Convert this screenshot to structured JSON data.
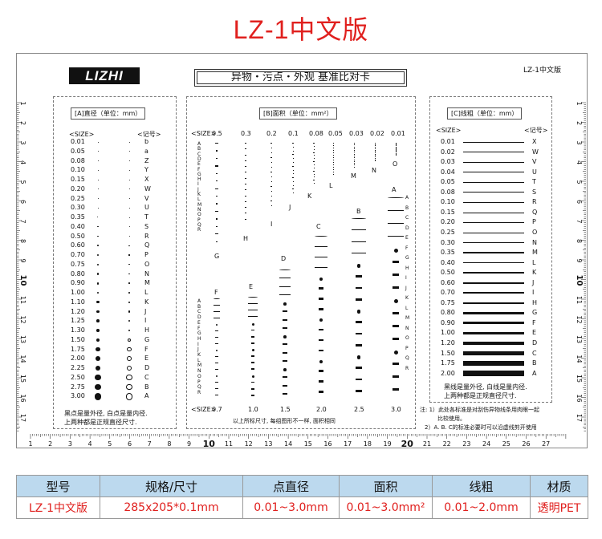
{
  "page_title": "LZ-1中文版",
  "card": {
    "logo": "LIZHI",
    "title": "异物・污点・外观 基准比对卡",
    "version": "LZ-1中文版"
  },
  "panel_a": {
    "header": "[A]直径（单位：mm）",
    "col_size": "<SIZE>",
    "col_code": "<记号>",
    "rows": [
      {
        "size": "0.01",
        "code": "b"
      },
      {
        "size": "0.05",
        "code": "a"
      },
      {
        "size": "0.08",
        "code": "Z"
      },
      {
        "size": "0.10",
        "code": "Y"
      },
      {
        "size": "0.15",
        "code": "X"
      },
      {
        "size": "0.20",
        "code": "W"
      },
      {
        "size": "0.25",
        "code": "V"
      },
      {
        "size": "0.30",
        "code": "U"
      },
      {
        "size": "0.35",
        "code": "T"
      },
      {
        "size": "0.40",
        "code": "S"
      },
      {
        "size": "0.50",
        "code": "R"
      },
      {
        "size": "0.60",
        "code": "Q"
      },
      {
        "size": "0.70",
        "code": "P"
      },
      {
        "size": "0.75",
        "code": "O"
      },
      {
        "size": "0.80",
        "code": "N"
      },
      {
        "size": "0.90",
        "code": "M"
      },
      {
        "size": "1.00",
        "code": "L"
      },
      {
        "size": "1.10",
        "code": "K"
      },
      {
        "size": "1.20",
        "code": "J"
      },
      {
        "size": "1.25",
        "code": "I"
      },
      {
        "size": "1.30",
        "code": "H"
      },
      {
        "size": "1.50",
        "code": "G"
      },
      {
        "size": "1.75",
        "code": "F"
      },
      {
        "size": "2.00",
        "code": "E"
      },
      {
        "size": "2.25",
        "code": "D"
      },
      {
        "size": "2.50",
        "code": "C"
      },
      {
        "size": "2.75",
        "code": "B"
      },
      {
        "size": "3.00",
        "code": "A"
      }
    ],
    "note_1": "黑点是量外径, 白点是量内径.",
    "note_2": "上两种都是正规直径尺寸."
  },
  "panel_b": {
    "header": "[B]面积（单位：mm²）",
    "top_size_label": "<SIZE>",
    "top_sizes": [
      "0.5",
      "0.3",
      "0.2",
      "0.1",
      "0.08",
      "0.05",
      "0.03",
      "0.02",
      "0.01"
    ],
    "bottom_size_label": "<SIZE>",
    "bottom_sizes": [
      "0.7",
      "1.0",
      "1.5",
      "2.0",
      "2.5",
      "3.0"
    ],
    "group_letters": [
      "A",
      "B",
      "C",
      "D",
      "E",
      "F",
      "G",
      "H",
      "I",
      "J",
      "K",
      "L",
      "M",
      "N",
      "O"
    ],
    "side_letters": [
      "A",
      "B",
      "C",
      "D",
      "E",
      "F",
      "G",
      "H",
      "I",
      "J",
      "K",
      "L",
      "M",
      "N",
      "O",
      "P",
      "Q",
      "R"
    ],
    "note": "以上所标尺寸, 每组图形不一样, 面积相同"
  },
  "panel_c": {
    "header": "[C]线粗（单位：mm）",
    "col_size": "<SIZE>",
    "col_code": "<记号>",
    "rows": [
      {
        "size": "0.01",
        "code": "X"
      },
      {
        "size": "0.02",
        "code": "W"
      },
      {
        "size": "0.03",
        "code": "V"
      },
      {
        "size": "0.04",
        "code": "U"
      },
      {
        "size": "0.05",
        "code": "T"
      },
      {
        "size": "0.08",
        "code": "S"
      },
      {
        "size": "0.10",
        "code": "R"
      },
      {
        "size": "0.15",
        "code": "Q"
      },
      {
        "size": "0.20",
        "code": "P"
      },
      {
        "size": "0.25",
        "code": "O"
      },
      {
        "size": "0.30",
        "code": "N"
      },
      {
        "size": "0.35",
        "code": "M"
      },
      {
        "size": "0.40",
        "code": "L"
      },
      {
        "size": "0.50",
        "code": "K"
      },
      {
        "size": "0.60",
        "code": "J"
      },
      {
        "size": "0.70",
        "code": "I"
      },
      {
        "size": "0.75",
        "code": "H"
      },
      {
        "size": "0.80",
        "code": "G"
      },
      {
        "size": "0.90",
        "code": "F"
      },
      {
        "size": "1.00",
        "code": "E"
      },
      {
        "size": "1.20",
        "code": "D"
      },
      {
        "size": "1.50",
        "code": "C"
      },
      {
        "size": "1.75",
        "code": "B"
      },
      {
        "size": "2.00",
        "code": "A"
      }
    ],
    "note_1": "黑线是量外径, 白线是量内径.",
    "note_2": "上两种都是正规直径尺寸."
  },
  "footnote": {
    "line1": "注: 1）此处各标准是对刮伤异物线条用肉眼一起",
    "line2": "比较使用。",
    "line3": "2）A. B. C的标准必要时可以沿虚线剪开使用"
  },
  "ruler": {
    "labels": [
      "1",
      "2",
      "3",
      "4",
      "5",
      "6",
      "7",
      "8",
      "9",
      "10",
      "11",
      "12",
      "13",
      "14",
      "15",
      "16",
      "17",
      "18",
      "19",
      "20",
      "21",
      "22",
      "23",
      "24",
      "25",
      "26",
      "27"
    ],
    "left_labels": [
      "1",
      "2",
      "3",
      "4",
      "5",
      "6",
      "7",
      "8",
      "9",
      "10",
      "11",
      "12",
      "13",
      "14",
      "15",
      "16",
      "17"
    ],
    "right_labels": [
      "1",
      "2",
      "3",
      "4",
      "5",
      "6",
      "7",
      "8",
      "9",
      "10",
      "11",
      "12",
      "13",
      "14",
      "15",
      "16",
      "17"
    ]
  },
  "spec_table": {
    "headers": [
      "型号",
      "规格/尺寸",
      "点直径",
      "面积",
      "线粗",
      "材质"
    ],
    "values": [
      "LZ-1中文版",
      "285x205*0.1mm",
      "0.01~3.0mm",
      "0.01~3.0mm²",
      "0.01~2.0mm",
      "透明PET"
    ]
  },
  "colors": {
    "accent": "#e0201e",
    "table_header": "#bcd9ee"
  }
}
